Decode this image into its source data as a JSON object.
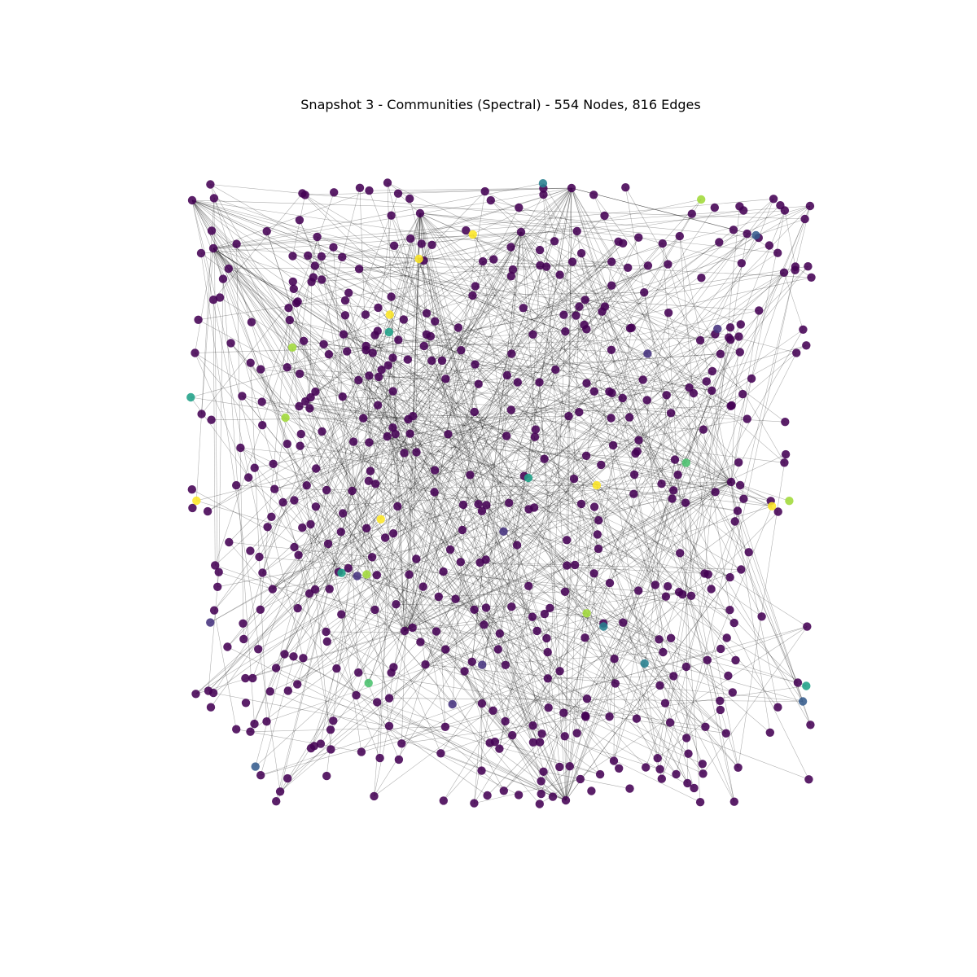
{
  "title": "Snapshot 3 - Communities (Spectral) - 554 Nodes, 816 Edges",
  "colors": {
    "background": "#ffffff",
    "edge": "#000000",
    "community_palette": [
      "#440154",
      "#46327e",
      "#365c8d",
      "#277f8e",
      "#1fa187",
      "#4ac16d",
      "#a0da39",
      "#fde725"
    ]
  },
  "graph": {
    "node_count": 554,
    "edge_count": 816,
    "dominant_community_color": "#440154",
    "highlighted_nodes": [
      {
        "community": 7,
        "color": "#fde725"
      },
      {
        "community": 5,
        "color": "#4ac16d"
      },
      {
        "community": 6,
        "color": "#a0da39"
      },
      {
        "community": 2,
        "color": "#365c8d"
      },
      {
        "community": 3,
        "color": "#277f8e"
      },
      {
        "community": 4,
        "color": "#1fa187"
      },
      {
        "community": 1,
        "color": "#46327e"
      }
    ]
  }
}
